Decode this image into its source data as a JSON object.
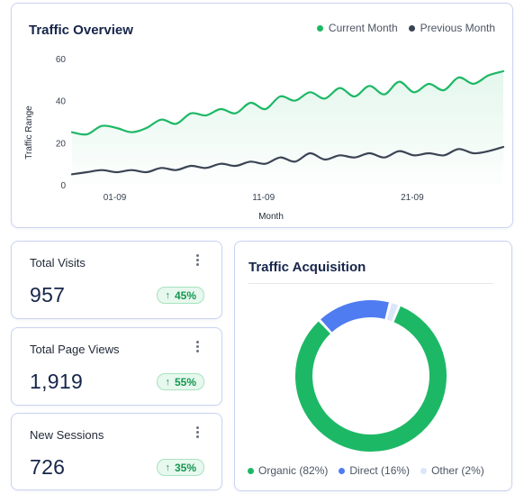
{
  "overview": {
    "title": "Traffic Overview",
    "legend": [
      {
        "label": "Current Month",
        "color": "#1db866"
      },
      {
        "label": "Previous Month",
        "color": "#3b4454"
      }
    ]
  },
  "chart_data": [
    {
      "type": "line",
      "title": "Traffic Overview",
      "xlabel": "Month",
      "ylabel": "Traffic Range",
      "ylim": [
        0,
        60
      ],
      "yticks": [
        "0",
        "20",
        "40",
        "60"
      ],
      "xticks": [
        "01-09",
        "11-09",
        "21-09"
      ],
      "grid": false,
      "legend_position": "top-right",
      "series": [
        {
          "name": "Current Month",
          "color": "#1db866",
          "values": [
            25,
            24,
            28,
            27,
            25,
            27,
            31,
            29,
            34,
            33,
            36,
            34,
            39,
            36,
            42,
            40,
            44,
            41,
            46,
            42,
            47,
            43,
            49,
            44,
            48,
            45,
            51,
            48,
            52,
            54
          ]
        },
        {
          "name": "Previous Month",
          "color": "#3b4454",
          "values": [
            5,
            6,
            7,
            6,
            7,
            6,
            8,
            7,
            9,
            8,
            10,
            9,
            11,
            10,
            13,
            11,
            15,
            12,
            14,
            13,
            15,
            13,
            16,
            14,
            15,
            14,
            17,
            15,
            16,
            18
          ]
        }
      ]
    },
    {
      "type": "pie",
      "title": "Traffic Acquisition",
      "donut": true,
      "categories": [
        "Organic (82%)",
        "Direct (16%)",
        "Other (2%)"
      ],
      "values": [
        82,
        16,
        2
      ],
      "colors": [
        "#1db866",
        "#4f7cf0",
        "#dbe6fb"
      ],
      "legend_position": "bottom"
    }
  ],
  "stats": [
    {
      "label": "Total Visits",
      "value": "957",
      "change": "45%"
    },
    {
      "label": "Total Page Views",
      "value": "1,919",
      "change": "55%"
    },
    {
      "label": "New Sessions",
      "value": "726",
      "change": "35%"
    }
  ],
  "acquisition": {
    "title": "Traffic Acquisition",
    "legend": [
      {
        "label": "Organic (82%)",
        "color": "#1db866"
      },
      {
        "label": "Direct (16%)",
        "color": "#4f7cf0"
      },
      {
        "label": "Other (2%)",
        "color": "#dbe6fb"
      }
    ]
  },
  "icons": {
    "menu": "more-vertical-icon",
    "trend": "arrow-up-icon"
  }
}
